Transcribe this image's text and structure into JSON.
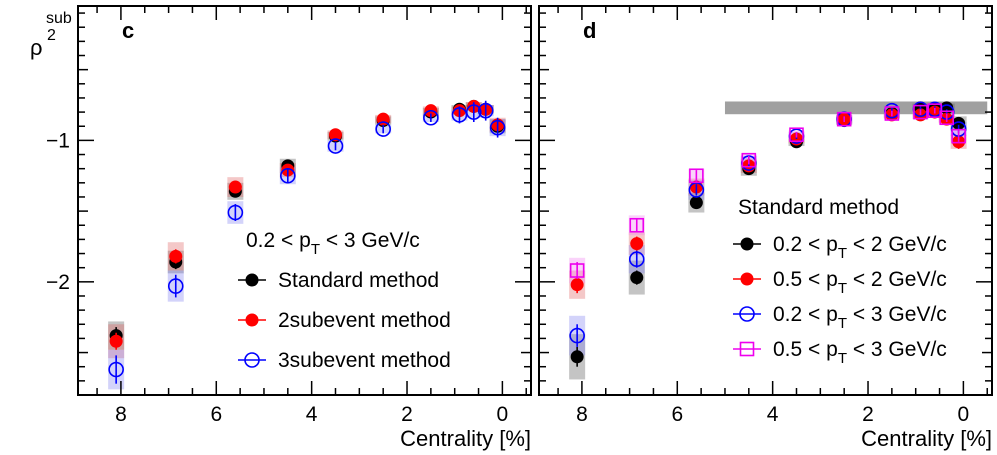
{
  "y_axis_title": "ρ",
  "y_axis_title_sup": "sub",
  "y_axis_title_sub": "2",
  "chart_data": [
    {
      "type": "scatter",
      "panel": "c",
      "xlabel": "Centrality [%]",
      "xlim": [
        8.9,
        -0.6
      ],
      "ylim": [
        -2.8,
        -0.05
      ],
      "x_ticks": [
        8,
        6,
        4,
        2,
        0
      ],
      "y_ticks": [
        -1,
        -2
      ],
      "legend_header": {
        "pre": "0.2 < p",
        "sub": "T",
        "post": " < 3 GeV/c"
      },
      "series": [
        {
          "name": "Standard method",
          "marker": "filled-circle",
          "color": "#000000",
          "x": [
            8.1,
            6.85,
            5.6,
            4.5,
            3.5,
            2.5,
            1.5,
            0.9,
            0.6,
            0.35,
            0.1
          ],
          "y": [
            -2.38,
            -1.86,
            -1.36,
            -1.18,
            -0.97,
            -0.86,
            -0.8,
            -0.78,
            -0.76,
            -0.78,
            -0.9
          ],
          "err": [
            0.06,
            0.05,
            0.04,
            0.03,
            0.02,
            0.02,
            0.02,
            0.02,
            0.02,
            0.02,
            0.03
          ],
          "sys": [
            0.1,
            0.08,
            0.06,
            0.05,
            0.03,
            0.03,
            0.03,
            0.03,
            0.03,
            0.03,
            0.05
          ],
          "sys_color": "#555555"
        },
        {
          "name": "2subevent method",
          "marker": "filled-circle",
          "color": "#ff0000",
          "x": [
            8.1,
            6.85,
            5.6,
            4.5,
            3.5,
            2.5,
            1.5,
            0.9,
            0.6,
            0.35,
            0.1
          ],
          "y": [
            -2.42,
            -1.82,
            -1.33,
            -1.21,
            -0.96,
            -0.85,
            -0.79,
            -0.79,
            -0.76,
            -0.78,
            -0.89
          ],
          "err": [
            0.06,
            0.05,
            0.04,
            0.03,
            0.02,
            0.02,
            0.02,
            0.02,
            0.02,
            0.02,
            0.03
          ],
          "sys": [
            0.12,
            0.1,
            0.07,
            0.05,
            0.03,
            0.03,
            0.03,
            0.03,
            0.03,
            0.03,
            0.05
          ],
          "sys_color": "#e06060"
        },
        {
          "name": "3subevent method",
          "marker": "open-circle",
          "color": "#0000ff",
          "x": [
            8.1,
            6.85,
            5.6,
            4.5,
            3.5,
            2.5,
            1.5,
            0.9,
            0.6,
            0.35,
            0.1
          ],
          "y": [
            -2.62,
            -2.03,
            -1.51,
            -1.25,
            -1.04,
            -0.92,
            -0.84,
            -0.82,
            -0.8,
            -0.79,
            -0.91
          ],
          "err": [
            0.1,
            0.08,
            0.06,
            0.05,
            0.03,
            0.03,
            0.03,
            0.06,
            0.07,
            0.07,
            0.07
          ],
          "sys": [
            0.14,
            0.11,
            0.08,
            0.06,
            0.04,
            0.03,
            0.03,
            0.04,
            0.04,
            0.04,
            0.06
          ],
          "sys_color": "#8080f0"
        }
      ]
    },
    {
      "type": "scatter",
      "panel": "d",
      "xlabel": "Centrality [%]",
      "xlim": [
        8.9,
        -0.6
      ],
      "ylim": [
        -2.8,
        -0.05
      ],
      "x_ticks": [
        8,
        6,
        4,
        2,
        0
      ],
      "y_ticks": [
        -1,
        -2
      ],
      "legend_header_text": "Standard method",
      "band": {
        "x": [
          5.0,
          -0.5
        ],
        "y": -0.77,
        "half_height": 0.045
      },
      "series": [
        {
          "name": "0.2 < p_T < 2 GeV/c",
          "label_pre": "0.2 < p",
          "label_sub": "T",
          "label_post": " < 2 GeV/c",
          "marker": "filled-circle",
          "color": "#000000",
          "x": [
            8.1,
            6.85,
            5.6,
            4.5,
            3.5,
            2.5,
            1.5,
            0.9,
            0.6,
            0.35,
            0.1
          ],
          "y": [
            -2.53,
            -1.97,
            -1.44,
            -1.2,
            -1.01,
            -0.86,
            -0.81,
            -0.77,
            -0.78,
            -0.77,
            -0.88
          ],
          "err": [
            0.07,
            0.05,
            0.04,
            0.03,
            0.02,
            0.02,
            0.02,
            0.02,
            0.02,
            0.02,
            0.03
          ],
          "sys": [
            0.16,
            0.12,
            0.07,
            0.05,
            0.03,
            0.03,
            0.03,
            0.03,
            0.03,
            0.03,
            0.05
          ],
          "sys_color": "#555555"
        },
        {
          "name": "0.5 < p_T < 2 GeV/c",
          "label_pre": "0.5 < p",
          "label_sub": "T",
          "label_post": " < 2 GeV/c",
          "marker": "filled-circle",
          "color": "#ff0000",
          "x": [
            8.1,
            6.85,
            5.6,
            4.5,
            3.5,
            2.5,
            1.5,
            0.9,
            0.6,
            0.35,
            0.1
          ],
          "y": [
            -2.02,
            -1.73,
            -1.33,
            -1.18,
            -0.99,
            -0.85,
            -0.82,
            -0.82,
            -0.8,
            -0.85,
            -1.01
          ],
          "err": [
            0.06,
            0.05,
            0.04,
            0.03,
            0.02,
            0.02,
            0.02,
            0.02,
            0.02,
            0.03,
            0.05
          ],
          "sys": [
            0.1,
            0.08,
            0.06,
            0.05,
            0.03,
            0.03,
            0.03,
            0.03,
            0.03,
            0.03,
            0.05
          ],
          "sys_color": "#e06060"
        },
        {
          "name": "0.2 < p_T < 3 GeV/c",
          "label_pre": "0.2 < p",
          "label_sub": "T",
          "label_post": " < 3 GeV/c",
          "marker": "open-circle",
          "color": "#0000ff",
          "x": [
            8.1,
            6.85,
            5.6,
            4.5,
            3.5,
            2.5,
            1.5,
            0.9,
            0.6,
            0.35,
            0.1
          ],
          "y": [
            -2.38,
            -1.84,
            -1.35,
            -1.16,
            -0.97,
            -0.85,
            -0.79,
            -0.78,
            -0.78,
            -0.8,
            -0.92
          ],
          "err": [
            0.08,
            0.06,
            0.04,
            0.03,
            0.02,
            0.02,
            0.02,
            0.02,
            0.02,
            0.02,
            0.03
          ],
          "sys": [
            0.14,
            0.1,
            0.07,
            0.05,
            0.03,
            0.03,
            0.03,
            0.03,
            0.03,
            0.03,
            0.05
          ],
          "sys_color": "#8080f0"
        },
        {
          "name": "0.5 < p_T < 3 GeV/c",
          "label_pre": "0.5 < p",
          "label_sub": "T",
          "label_post": " < 3 GeV/c",
          "marker": "open-square",
          "color": "#ee00ee",
          "x": [
            8.1,
            6.85,
            5.6,
            4.5,
            3.5,
            2.5,
            1.5,
            0.9,
            0.6,
            0.35,
            0.1
          ],
          "y": [
            -1.92,
            -1.6,
            -1.25,
            -1.14,
            -0.96,
            -0.85,
            -0.81,
            -0.8,
            -0.79,
            -0.84,
            -0.97
          ],
          "err": [
            0.06,
            0.05,
            0.04,
            0.03,
            0.02,
            0.02,
            0.02,
            0.02,
            0.02,
            0.03,
            0.04
          ],
          "sys": [
            0.09,
            0.07,
            0.05,
            0.04,
            0.03,
            0.03,
            0.03,
            0.03,
            0.03,
            0.03,
            0.04
          ],
          "sys_color": "#f080f0"
        }
      ]
    }
  ]
}
